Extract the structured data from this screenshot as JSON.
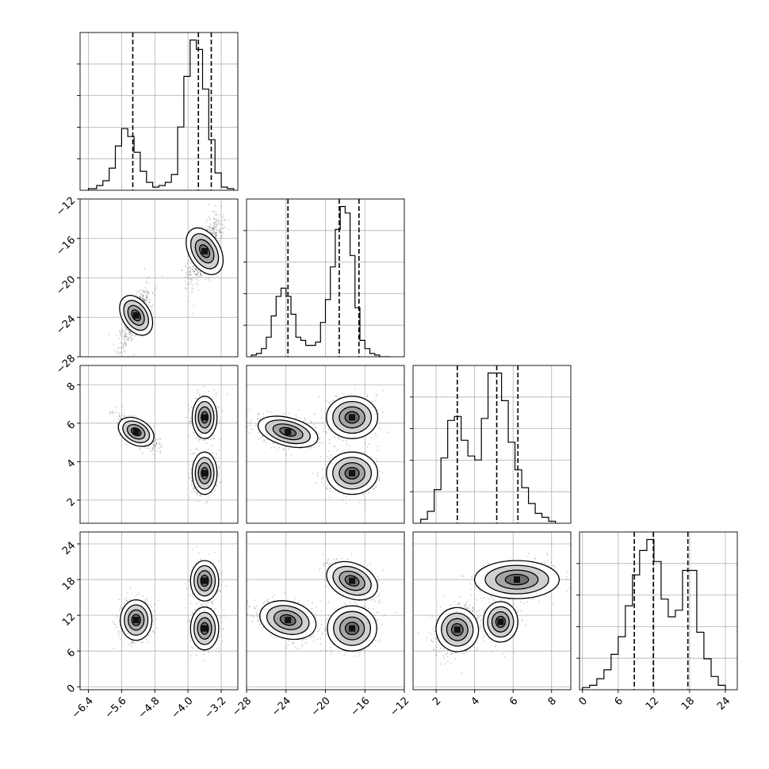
{
  "chart_data": {
    "type": "corner",
    "layout": "lower-triangle",
    "grid": true,
    "colors": {
      "hist": "#000000",
      "scatter": "#555555",
      "contour": "#000000",
      "grid": "#b0b0b0"
    },
    "params": [
      {
        "range": [
          -6.6,
          -2.8
        ],
        "ticks": [
          "−6.4",
          "−5.6",
          "−4.8",
          "−4.0",
          "−3.2"
        ],
        "tick_values": [
          -6.4,
          -5.6,
          -4.8,
          -4.0,
          -3.2
        ]
      },
      {
        "range": [
          -28,
          -12
        ],
        "ticks": [
          "−28",
          "−24",
          "−20",
          "−16",
          "−12"
        ],
        "tick_values": [
          -28,
          -24,
          -20,
          -16,
          -12
        ]
      },
      {
        "range": [
          0.8,
          9.0
        ],
        "ticks": [
          "2",
          "4",
          "6",
          "8"
        ],
        "tick_values": [
          2,
          4,
          6,
          8
        ]
      },
      {
        "range": [
          -0.5,
          26.0
        ],
        "ticks": [
          "0",
          "6",
          "12",
          "18",
          "24"
        ],
        "tick_values": [
          0,
          6,
          12,
          18,
          24
        ]
      }
    ],
    "histograms": [
      {
        "param": 0,
        "bin_edges": [
          -6.4,
          -6.2,
          -6.05,
          -5.9,
          -5.75,
          -5.6,
          -5.45,
          -5.3,
          -5.15,
          -5.0,
          -4.85,
          -4.7,
          -4.55,
          -4.4,
          -4.25,
          -4.1,
          -3.95,
          -3.8,
          -3.65,
          -3.5,
          -3.35,
          -3.2,
          -3.05,
          -2.9
        ],
        "counts": [
          0.01,
          0.03,
          0.06,
          0.14,
          0.28,
          0.39,
          0.34,
          0.24,
          0.12,
          0.05,
          0.02,
          0.03,
          0.05,
          0.1,
          0.4,
          0.72,
          0.95,
          0.89,
          0.64,
          0.32,
          0.11,
          0.02,
          0.01
        ],
        "quantiles": [
          -5.33,
          -3.75,
          -3.44
        ]
      },
      {
        "param": 1,
        "bin_edges": [
          -27.5,
          -27.0,
          -26.5,
          -26.0,
          -25.5,
          -25.0,
          -24.5,
          -24.0,
          -23.5,
          -23.0,
          -22.5,
          -22.0,
          -21.5,
          -21.0,
          -20.5,
          -20.0,
          -19.5,
          -19.0,
          -18.5,
          -18.0,
          -17.5,
          -17.0,
          -16.5,
          -16.0,
          -15.5,
          -15.0,
          -14.5,
          -14.0,
          -13.5
        ],
        "counts": [
          0.01,
          0.02,
          0.05,
          0.12,
          0.25,
          0.37,
          0.42,
          0.37,
          0.26,
          0.12,
          0.1,
          0.07,
          0.07,
          0.09,
          0.21,
          0.35,
          0.55,
          0.78,
          0.92,
          0.88,
          0.62,
          0.3,
          0.1,
          0.05,
          0.02,
          0.01,
          0.0,
          0.0
        ],
        "quantiles": [
          -23.8,
          -18.6,
          -16.6
        ]
      },
      {
        "param": 2,
        "bin_edges": [
          1.2,
          1.55,
          1.9,
          2.25,
          2.6,
          2.95,
          3.3,
          3.65,
          4.0,
          4.35,
          4.7,
          5.05,
          5.4,
          5.75,
          6.1,
          6.45,
          6.8,
          7.15,
          7.5,
          7.85,
          8.2
        ],
        "counts": [
          0.02,
          0.06,
          0.17,
          0.33,
          0.52,
          0.54,
          0.42,
          0.34,
          0.32,
          0.53,
          0.76,
          0.76,
          0.62,
          0.41,
          0.27,
          0.18,
          0.1,
          0.05,
          0.03,
          0.01
        ],
        "quantiles": [
          3.1,
          5.15,
          6.25
        ]
      },
      {
        "param": 3,
        "bin_edges": [
          0,
          1.2,
          2.4,
          3.6,
          4.8,
          6.0,
          7.2,
          8.4,
          9.6,
          10.8,
          12.0,
          13.2,
          14.4,
          15.6,
          16.8,
          18.0,
          19.2,
          20.4,
          21.6,
          22.8,
          24.0
        ],
        "counts": [
          0.01,
          0.02,
          0.05,
          0.09,
          0.16,
          0.24,
          0.38,
          0.52,
          0.63,
          0.68,
          0.58,
          0.41,
          0.33,
          0.36,
          0.54,
          0.54,
          0.26,
          0.14,
          0.06,
          0.02
        ],
        "quantiles": [
          8.7,
          11.9,
          17.7
        ]
      }
    ],
    "joint_panels": [
      {
        "x": 0,
        "y": 1,
        "modes": [
          {
            "cx": -5.25,
            "cy": -23.8,
            "sx": 0.17,
            "sy": 1.35,
            "r": 0.75,
            "w": 0.45
          },
          {
            "cx": -3.6,
            "cy": -17.3,
            "sx": 0.19,
            "sy": 1.55,
            "r": 0.7,
            "w": 0.55
          }
        ]
      },
      {
        "x": 0,
        "y": 2,
        "modes": [
          {
            "cx": -5.25,
            "cy": 5.55,
            "sx": 0.23,
            "sy": 0.4,
            "r": -0.7,
            "w": 0.45
          },
          {
            "cx": -3.6,
            "cy": 6.3,
            "sx": 0.15,
            "sy": 0.55,
            "r": 0.0,
            "w": 0.25
          },
          {
            "cx": -3.6,
            "cy": 3.4,
            "sx": 0.15,
            "sy": 0.55,
            "r": 0.0,
            "w": 0.3
          }
        ]
      },
      {
        "x": 1,
        "y": 2,
        "modes": [
          {
            "cx": -23.8,
            "cy": 5.55,
            "sx": 1.55,
            "sy": 0.4,
            "r": -0.35,
            "w": 0.45
          },
          {
            "cx": -17.3,
            "cy": 6.3,
            "sx": 1.3,
            "sy": 0.55,
            "r": 0.0,
            "w": 0.25
          },
          {
            "cx": -17.3,
            "cy": 3.4,
            "sx": 1.3,
            "sy": 0.55,
            "r": 0.0,
            "w": 0.3
          }
        ]
      },
      {
        "x": 0,
        "y": 3,
        "modes": [
          {
            "cx": -5.25,
            "cy": 11.2,
            "sx": 0.19,
            "sy": 1.7,
            "r": 0.0,
            "w": 0.45
          },
          {
            "cx": -3.6,
            "cy": 17.8,
            "sx": 0.17,
            "sy": 1.7,
            "r": 0.0,
            "w": 0.28
          },
          {
            "cx": -3.6,
            "cy": 9.8,
            "sx": 0.17,
            "sy": 1.8,
            "r": 0.0,
            "w": 0.27
          }
        ]
      },
      {
        "x": 1,
        "y": 3,
        "modes": [
          {
            "cx": -23.8,
            "cy": 11.2,
            "sx": 1.45,
            "sy": 1.7,
            "r": -0.35,
            "w": 0.45
          },
          {
            "cx": -17.3,
            "cy": 17.8,
            "sx": 1.35,
            "sy": 1.7,
            "r": -0.55,
            "w": 0.28
          },
          {
            "cx": -17.3,
            "cy": 9.8,
            "sx": 1.25,
            "sy": 1.9,
            "r": 0.0,
            "w": 0.27
          }
        ]
      },
      {
        "x": 2,
        "y": 3,
        "modes": [
          {
            "cx": 3.1,
            "cy": 9.6,
            "sx": 0.55,
            "sy": 2.0,
            "r": 0.3,
            "w": 0.45
          },
          {
            "cx": 5.35,
            "cy": 10.9,
            "sx": 0.45,
            "sy": 1.7,
            "r": 0.0,
            "w": 0.27
          },
          {
            "cx": 6.2,
            "cy": 18.0,
            "sx": 1.1,
            "sy": 1.6,
            "r": 0.0,
            "w": 0.28
          }
        ]
      }
    ]
  }
}
